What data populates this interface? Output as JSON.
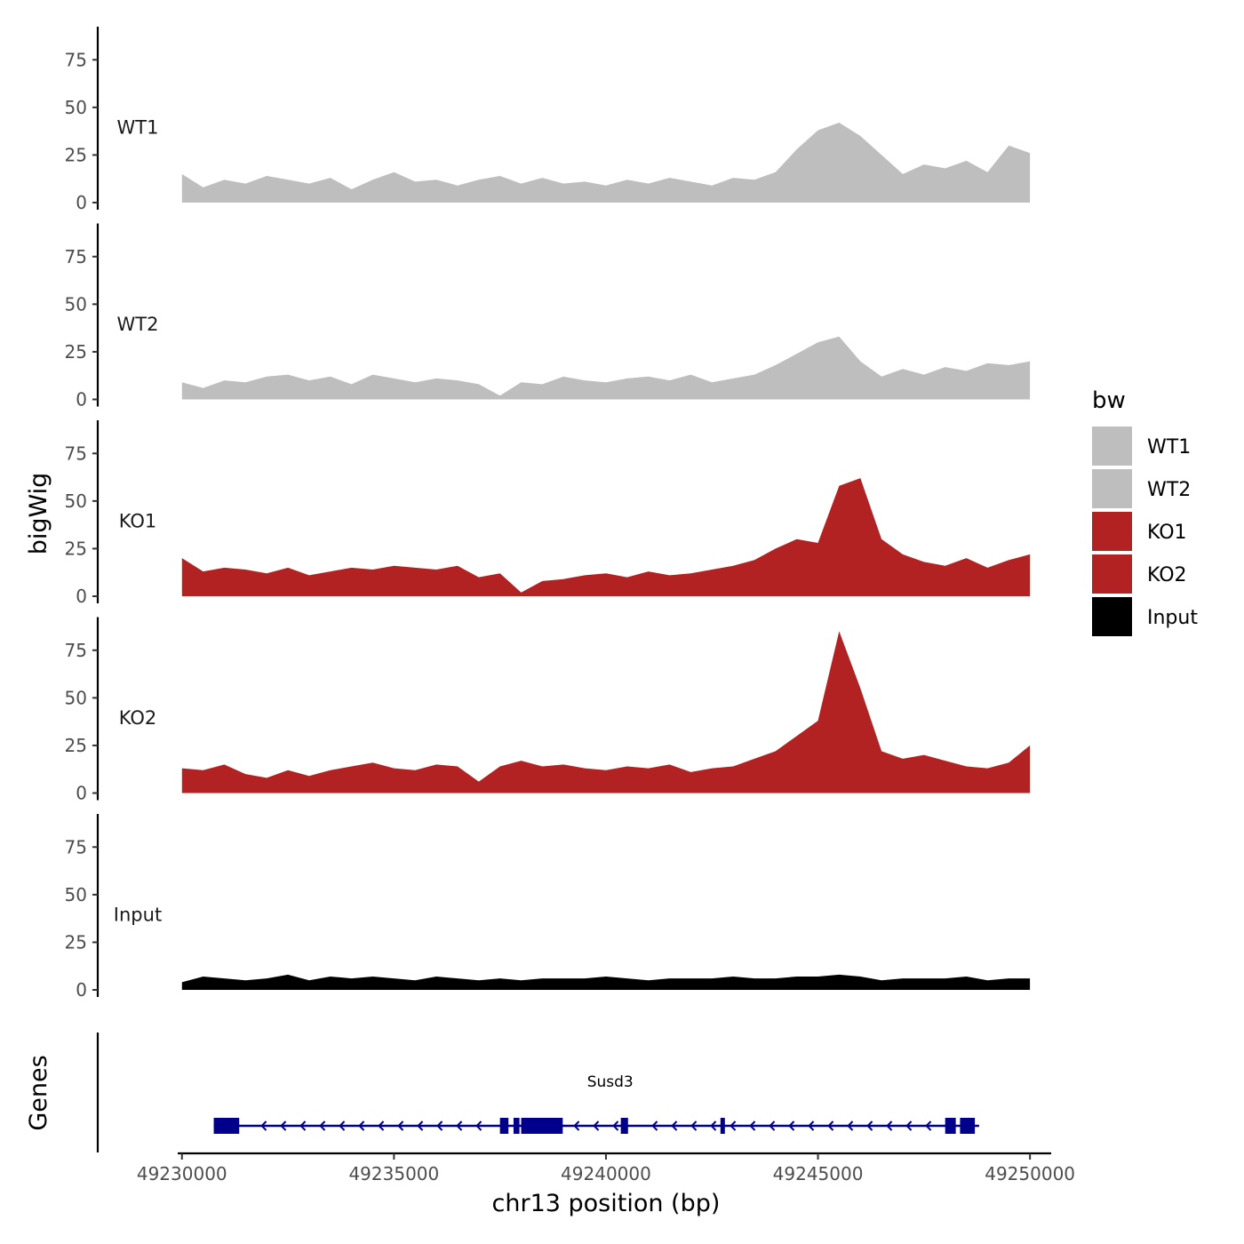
{
  "chart_data": {
    "type": "area",
    "chromosome": "chr13",
    "x_axis": {
      "title": "chr13 position (bp)",
      "range": [
        49229900,
        49250500
      ],
      "ticks": [
        49230000,
        49235000,
        49240000,
        49245000,
        49250000
      ],
      "tick_labels": [
        "49230000",
        "49235000",
        "49240000",
        "49245000",
        "49250000"
      ]
    },
    "y_axis": {
      "title": "bigWig",
      "range": [
        0,
        90
      ],
      "ticks": [
        0,
        25,
        50,
        75
      ],
      "tick_labels": [
        "0",
        "25",
        "50",
        "75"
      ]
    },
    "legend": {
      "title": "bw",
      "position": "right",
      "entries": [
        {
          "label": "WT1",
          "color": "#bebebe"
        },
        {
          "label": "WT2",
          "color": "#bebebe"
        },
        {
          "label": "KO1",
          "color": "#b22222"
        },
        {
          "label": "KO2",
          "color": "#b22222"
        },
        {
          "label": "Input",
          "color": "#000000"
        }
      ]
    },
    "x": [
      49230000,
      49230500,
      49231000,
      49231500,
      49232000,
      49232500,
      49233000,
      49233500,
      49234000,
      49234500,
      49235000,
      49235500,
      49236000,
      49236500,
      49237000,
      49237500,
      49238000,
      49238500,
      49239000,
      49239500,
      49240000,
      49240500,
      49241000,
      49241500,
      49242000,
      49242500,
      49243000,
      49243500,
      49244000,
      49244500,
      49245000,
      49245500,
      49246000,
      49246500,
      49247000,
      49247500,
      49248000,
      49248500,
      49249000,
      49249500,
      49250000
    ],
    "series": [
      {
        "name": "WT1",
        "color": "#bebebe",
        "values": [
          15,
          8,
          12,
          10,
          14,
          12,
          10,
          13,
          7,
          12,
          16,
          11,
          12,
          9,
          12,
          14,
          10,
          13,
          10,
          11,
          9,
          12,
          10,
          13,
          11,
          9,
          13,
          12,
          16,
          28,
          38,
          42,
          35,
          25,
          15,
          20,
          18,
          22,
          16,
          30,
          26
        ]
      },
      {
        "name": "WT2",
        "color": "#bebebe",
        "values": [
          9,
          6,
          10,
          9,
          12,
          13,
          10,
          12,
          8,
          13,
          11,
          9,
          11,
          10,
          8,
          2,
          9,
          8,
          12,
          10,
          9,
          11,
          12,
          10,
          13,
          9,
          11,
          13,
          18,
          24,
          30,
          33,
          20,
          12,
          16,
          13,
          17,
          15,
          19,
          18,
          20
        ]
      },
      {
        "name": "KO1",
        "color": "#b22222",
        "values": [
          20,
          13,
          15,
          14,
          12,
          15,
          11,
          13,
          15,
          14,
          16,
          15,
          14,
          16,
          10,
          12,
          2,
          8,
          9,
          11,
          12,
          10,
          13,
          11,
          12,
          14,
          16,
          19,
          25,
          30,
          28,
          58,
          62,
          30,
          22,
          18,
          16,
          20,
          15,
          19,
          22
        ]
      },
      {
        "name": "KO2",
        "color": "#b22222",
        "values": [
          13,
          12,
          15,
          10,
          8,
          12,
          9,
          12,
          14,
          16,
          13,
          12,
          15,
          14,
          6,
          14,
          17,
          14,
          15,
          13,
          12,
          14,
          13,
          15,
          11,
          13,
          14,
          18,
          22,
          30,
          38,
          85,
          55,
          22,
          18,
          20,
          17,
          14,
          13,
          16,
          25
        ]
      },
      {
        "name": "Input",
        "color": "#000000",
        "values": [
          4,
          7,
          6,
          5,
          6,
          8,
          5,
          7,
          6,
          7,
          6,
          5,
          7,
          6,
          5,
          6,
          5,
          6,
          6,
          6,
          7,
          6,
          5,
          6,
          6,
          6,
          7,
          6,
          6,
          7,
          7,
          8,
          7,
          5,
          6,
          6,
          6,
          7,
          5,
          6,
          6
        ]
      }
    ],
    "gene_track": {
      "title": "Genes",
      "color": "#00008b",
      "genes": [
        {
          "name": "Susd3",
          "strand": "-",
          "start": 49230750,
          "end": 49248800,
          "exons": [
            [
              49230750,
              49231350
            ],
            [
              49237500,
              49237700
            ],
            [
              49237820,
              49237960
            ],
            [
              49238000,
              49238980
            ],
            [
              49240350,
              49240520
            ],
            [
              49242700,
              49242800
            ],
            [
              49248000,
              49248250
            ],
            [
              49248350,
              49248700
            ]
          ]
        }
      ]
    }
  }
}
